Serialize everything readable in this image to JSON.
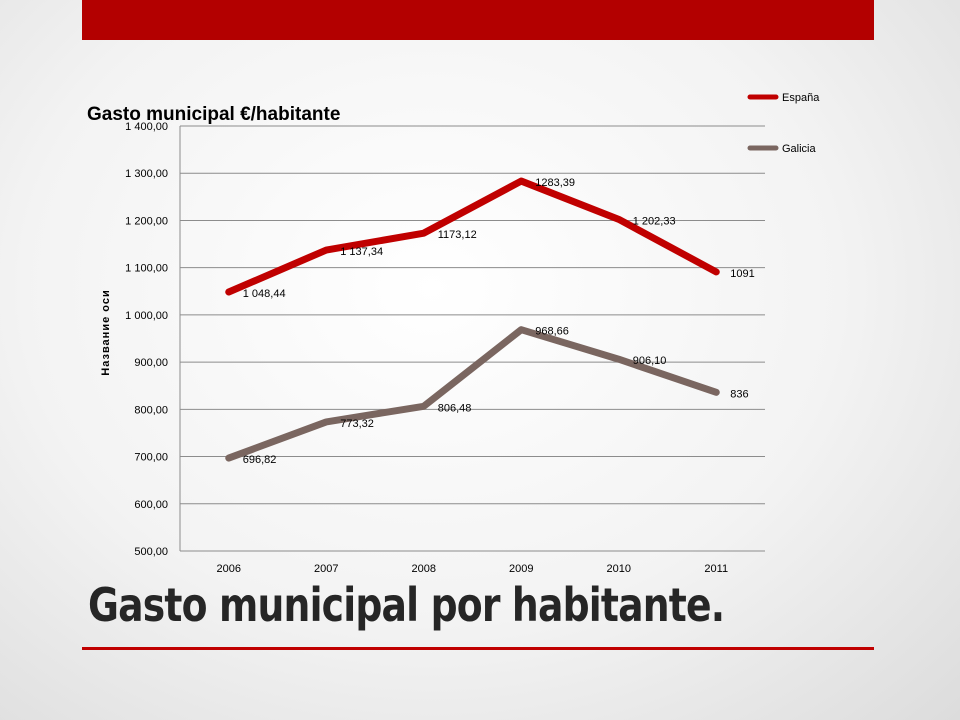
{
  "slide": {
    "title": "Gasto municipal por habitante.",
    "accent_color": "#b30000"
  },
  "chart_data": {
    "type": "line",
    "title": "Gasto municipal €/habitante",
    "xlabel": "",
    "ylabel": "Название оси",
    "categories": [
      "2006",
      "2007",
      "2008",
      "2009",
      "2010",
      "2011"
    ],
    "ylim": [
      500,
      1400
    ],
    "yticks": [
      500,
      600,
      700,
      800,
      900,
      1000,
      1100,
      1200,
      1300,
      1400
    ],
    "ytick_labels": [
      "500,00",
      "600,00",
      "700,00",
      "800,00",
      "900,00",
      "1 000,00",
      "1 100,00",
      "1 200,00",
      "1 300,00",
      "1 400,00"
    ],
    "grid": true,
    "legend_position": "top-right",
    "series": [
      {
        "name": "España",
        "color": "#c00000",
        "values": [
          1048.44,
          1137.34,
          1173.12,
          1283.39,
          1202.33,
          1091
        ],
        "labels": [
          "1 048,44",
          "1 137,34",
          "1173,12",
          "1283,39",
          "1 202,33",
          "1091"
        ]
      },
      {
        "name": "Galicia",
        "color": "#7a6660",
        "values": [
          696.82,
          773.32,
          806.48,
          968.66,
          906.1,
          836
        ],
        "labels": [
          "696,82",
          "773,32",
          "806,48",
          "968,66",
          "906,10",
          "836"
        ]
      }
    ]
  }
}
